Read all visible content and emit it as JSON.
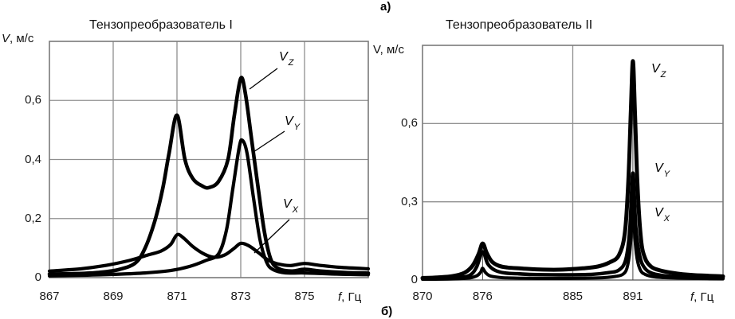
{
  "labels": {
    "panel_a": "а)",
    "panel_b": "б)"
  },
  "colors": {
    "curve": "#000000",
    "grid": "#8f8f8f",
    "frame": "#7a7a7a",
    "marker_line": "#4d4d4d",
    "text": "#111111"
  },
  "chart_data": [
    {
      "type": "line",
      "title": "Тензопреобразователь I",
      "y_axis_label": {
        "prefix": "V",
        "rest": ", м/с"
      },
      "x_axis_label": {
        "prefix": "f",
        "rest": ", Гц"
      },
      "xlim": [
        867,
        877
      ],
      "ylim": [
        0,
        0.8
      ],
      "x_gridlines": [
        869,
        871,
        873,
        875
      ],
      "y_gridlines": [
        0.2,
        0.4,
        0.6
      ],
      "marker_lines": [],
      "x_ticks": [
        {
          "v": 867,
          "label": "867"
        },
        {
          "v": 869,
          "label": "869"
        },
        {
          "v": 871,
          "label": "871"
        },
        {
          "v": 873,
          "label": "873"
        },
        {
          "v": 875,
          "label": "875"
        }
      ],
      "y_ticks": [
        {
          "v": 0,
          "label": "0"
        },
        {
          "v": 0.2,
          "label": "0,2"
        },
        {
          "v": 0.4,
          "label": "0,4"
        },
        {
          "v": 0.6,
          "label": "0,6"
        }
      ],
      "series": [
        {
          "name": "V_Z",
          "label_base": "V",
          "label_sub": "Z",
          "stroke_width": 4.6,
          "points": [
            [
              867,
              0.012
            ],
            [
              868,
              0.014
            ],
            [
              868.6,
              0.018
            ],
            [
              869.2,
              0.028
            ],
            [
              869.7,
              0.05
            ],
            [
              870,
              0.1
            ],
            [
              870.3,
              0.19
            ],
            [
              870.55,
              0.3
            ],
            [
              870.75,
              0.42
            ],
            [
              871,
              0.55
            ],
            [
              871.25,
              0.4
            ],
            [
              871.5,
              0.335
            ],
            [
              871.8,
              0.31
            ],
            [
              872,
              0.305
            ],
            [
              872.3,
              0.325
            ],
            [
              872.6,
              0.4
            ],
            [
              872.8,
              0.55
            ],
            [
              873,
              0.675
            ],
            [
              873.15,
              0.62
            ],
            [
              873.35,
              0.46
            ],
            [
              873.55,
              0.3
            ],
            [
              873.75,
              0.15
            ],
            [
              873.95,
              0.06
            ],
            [
              874.2,
              0.03
            ],
            [
              874.6,
              0.022
            ],
            [
              875,
              0.028
            ],
            [
              875.5,
              0.022
            ],
            [
              876.3,
              0.017
            ],
            [
              877,
              0.015
            ]
          ]
        },
        {
          "name": "V_Y",
          "label_base": "V",
          "label_sub": "Y",
          "stroke_width": 4.2,
          "points": [
            [
              867,
              0.006
            ],
            [
              868,
              0.008
            ],
            [
              869,
              0.011
            ],
            [
              870,
              0.016
            ],
            [
              870.8,
              0.024
            ],
            [
              871.4,
              0.038
            ],
            [
              871.9,
              0.058
            ],
            [
              872.3,
              0.08
            ],
            [
              872.55,
              0.16
            ],
            [
              872.75,
              0.3
            ],
            [
              872.95,
              0.44
            ],
            [
              873.05,
              0.465
            ],
            [
              873.2,
              0.42
            ],
            [
              873.4,
              0.27
            ],
            [
              873.6,
              0.13
            ],
            [
              873.8,
              0.055
            ],
            [
              874,
              0.028
            ],
            [
              874.4,
              0.016
            ],
            [
              875,
              0.016
            ],
            [
              876,
              0.012
            ],
            [
              877,
              0.01
            ]
          ]
        },
        {
          "name": "V_X",
          "label_base": "V",
          "label_sub": "X",
          "stroke_width": 4.2,
          "points": [
            [
              867,
              0.022
            ],
            [
              868,
              0.03
            ],
            [
              868.8,
              0.042
            ],
            [
              869.5,
              0.058
            ],
            [
              870.1,
              0.077
            ],
            [
              870.5,
              0.09
            ],
            [
              870.8,
              0.112
            ],
            [
              871,
              0.145
            ],
            [
              871.2,
              0.135
            ],
            [
              871.5,
              0.105
            ],
            [
              871.85,
              0.08
            ],
            [
              872.15,
              0.069
            ],
            [
              872.5,
              0.077
            ],
            [
              872.8,
              0.1
            ],
            [
              873,
              0.116
            ],
            [
              873.25,
              0.108
            ],
            [
              873.55,
              0.085
            ],
            [
              873.85,
              0.06
            ],
            [
              874.15,
              0.047
            ],
            [
              874.55,
              0.041
            ],
            [
              875,
              0.048
            ],
            [
              875.45,
              0.042
            ],
            [
              876.1,
              0.035
            ],
            [
              877,
              0.03
            ]
          ]
        }
      ]
    },
    {
      "type": "line",
      "title": "Тензопреобразователь II",
      "y_axis_label": {
        "prefix": "V",
        "rest": ", м/с"
      },
      "x_axis_label": {
        "prefix": "f",
        "rest": ", Гц"
      },
      "xlim": [
        870,
        900
      ],
      "ylim": [
        0,
        0.9
      ],
      "x_gridlines": [
        885
      ],
      "y_gridlines": [
        0.3,
        0.6
      ],
      "marker_lines": [
        {
          "x": 876,
          "top": 0.138
        },
        {
          "x": 891,
          "top": 0.83
        }
      ],
      "x_ticks": [
        {
          "v": 870,
          "label": "870"
        },
        {
          "v": 876,
          "label": "876"
        },
        {
          "v": 885,
          "label": "885"
        },
        {
          "v": 891,
          "label": "891"
        }
      ],
      "y_ticks": [
        {
          "v": 0,
          "label": "0"
        },
        {
          "v": 0.3,
          "label": "0,3"
        },
        {
          "v": 0.6,
          "label": "0,6"
        }
      ],
      "series": [
        {
          "name": "V_Z",
          "label_base": "V",
          "label_sub": "Z",
          "stroke_width": 5,
          "points": [
            [
              870,
              0.008
            ],
            [
              871.5,
              0.01
            ],
            [
              873,
              0.015
            ],
            [
              874.2,
              0.028
            ],
            [
              875,
              0.055
            ],
            [
              875.6,
              0.1
            ],
            [
              876,
              0.14
            ],
            [
              876.4,
              0.105
            ],
            [
              876.9,
              0.072
            ],
            [
              877.6,
              0.055
            ],
            [
              878.5,
              0.048
            ],
            [
              880,
              0.044
            ],
            [
              882,
              0.04
            ],
            [
              884,
              0.04
            ],
            [
              886,
              0.045
            ],
            [
              887.5,
              0.052
            ],
            [
              888.7,
              0.068
            ],
            [
              889.6,
              0.095
            ],
            [
              890.2,
              0.18
            ],
            [
              890.55,
              0.38
            ],
            [
              890.8,
              0.65
            ],
            [
              891,
              0.84
            ],
            [
              891.2,
              0.65
            ],
            [
              891.45,
              0.37
            ],
            [
              891.8,
              0.16
            ],
            [
              892.2,
              0.085
            ],
            [
              892.8,
              0.052
            ],
            [
              893.6,
              0.038
            ],
            [
              895,
              0.027
            ],
            [
              897,
              0.019
            ],
            [
              900,
              0.014
            ]
          ]
        },
        {
          "name": "V_Y",
          "label_base": "V",
          "label_sub": "Y",
          "stroke_width": 4.4,
          "points": [
            [
              870,
              0.005
            ],
            [
              872,
              0.006
            ],
            [
              873.8,
              0.01
            ],
            [
              874.8,
              0.02
            ],
            [
              875.4,
              0.05
            ],
            [
              876,
              0.108
            ],
            [
              876.5,
              0.063
            ],
            [
              877.2,
              0.038
            ],
            [
              878.2,
              0.027
            ],
            [
              879.5,
              0.024
            ],
            [
              881,
              0.021
            ],
            [
              883,
              0.02
            ],
            [
              885,
              0.02
            ],
            [
              887,
              0.022
            ],
            [
              888.5,
              0.028
            ],
            [
              889.6,
              0.038
            ],
            [
              890.3,
              0.08
            ],
            [
              890.7,
              0.2
            ],
            [
              891,
              0.41
            ],
            [
              891.3,
              0.2
            ],
            [
              891.7,
              0.09
            ],
            [
              892.2,
              0.045
            ],
            [
              893,
              0.025
            ],
            [
              894.5,
              0.015
            ],
            [
              896.5,
              0.011
            ],
            [
              900,
              0.008
            ]
          ]
        },
        {
          "name": "V_X",
          "label_base": "V",
          "label_sub": "X",
          "stroke_width": 4,
          "points": [
            [
              870,
              0.003
            ],
            [
              872.5,
              0.004
            ],
            [
              874.5,
              0.007
            ],
            [
              875.4,
              0.016
            ],
            [
              875.8,
              0.03
            ],
            [
              876,
              0.045
            ],
            [
              876.3,
              0.028
            ],
            [
              876.8,
              0.015
            ],
            [
              878,
              0.009
            ],
            [
              880,
              0.007
            ],
            [
              883,
              0.006
            ],
            [
              886,
              0.007
            ],
            [
              888,
              0.009
            ],
            [
              889.3,
              0.014
            ],
            [
              890,
              0.022
            ],
            [
              890.4,
              0.045
            ],
            [
              890.7,
              0.11
            ],
            [
              890.88,
              0.21
            ],
            [
              891,
              0.295
            ],
            [
              891.12,
              0.21
            ],
            [
              891.35,
              0.1
            ],
            [
              891.7,
              0.042
            ],
            [
              892.2,
              0.022
            ],
            [
              893.2,
              0.012
            ],
            [
              895,
              0.008
            ],
            [
              897.5,
              0.006
            ],
            [
              900,
              0.005
            ]
          ]
        }
      ]
    }
  ]
}
